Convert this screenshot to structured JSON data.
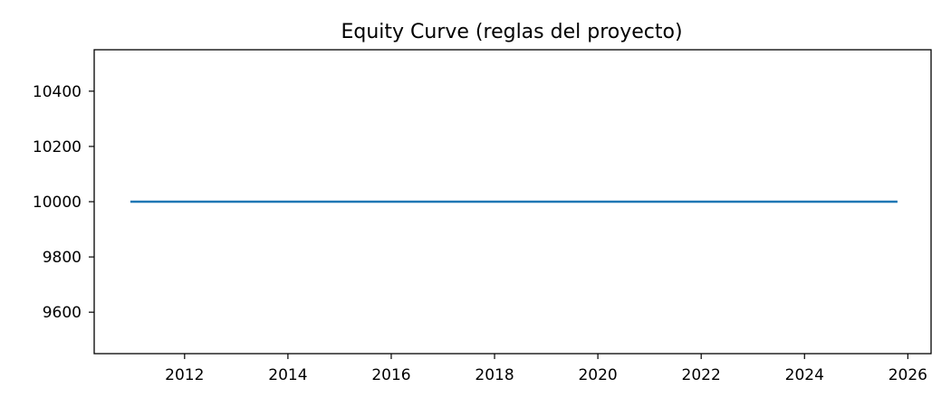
{
  "chart_data": {
    "type": "line",
    "title": "Equity Curve (reglas del proyecto)",
    "xlabel": "",
    "ylabel": "",
    "xlim": [
      2010.25,
      2026.45
    ],
    "ylim": [
      9450,
      10550
    ],
    "xticks": [
      2012,
      2014,
      2016,
      2018,
      2020,
      2022,
      2024,
      2026
    ],
    "yticks": [
      9600,
      9800,
      10000,
      10200,
      10400
    ],
    "grid": false,
    "legend": null,
    "series": [
      {
        "color": "#1f77b4",
        "x": [
          2010.95,
          2025.8
        ],
        "y": [
          10000,
          10000
        ]
      }
    ]
  }
}
